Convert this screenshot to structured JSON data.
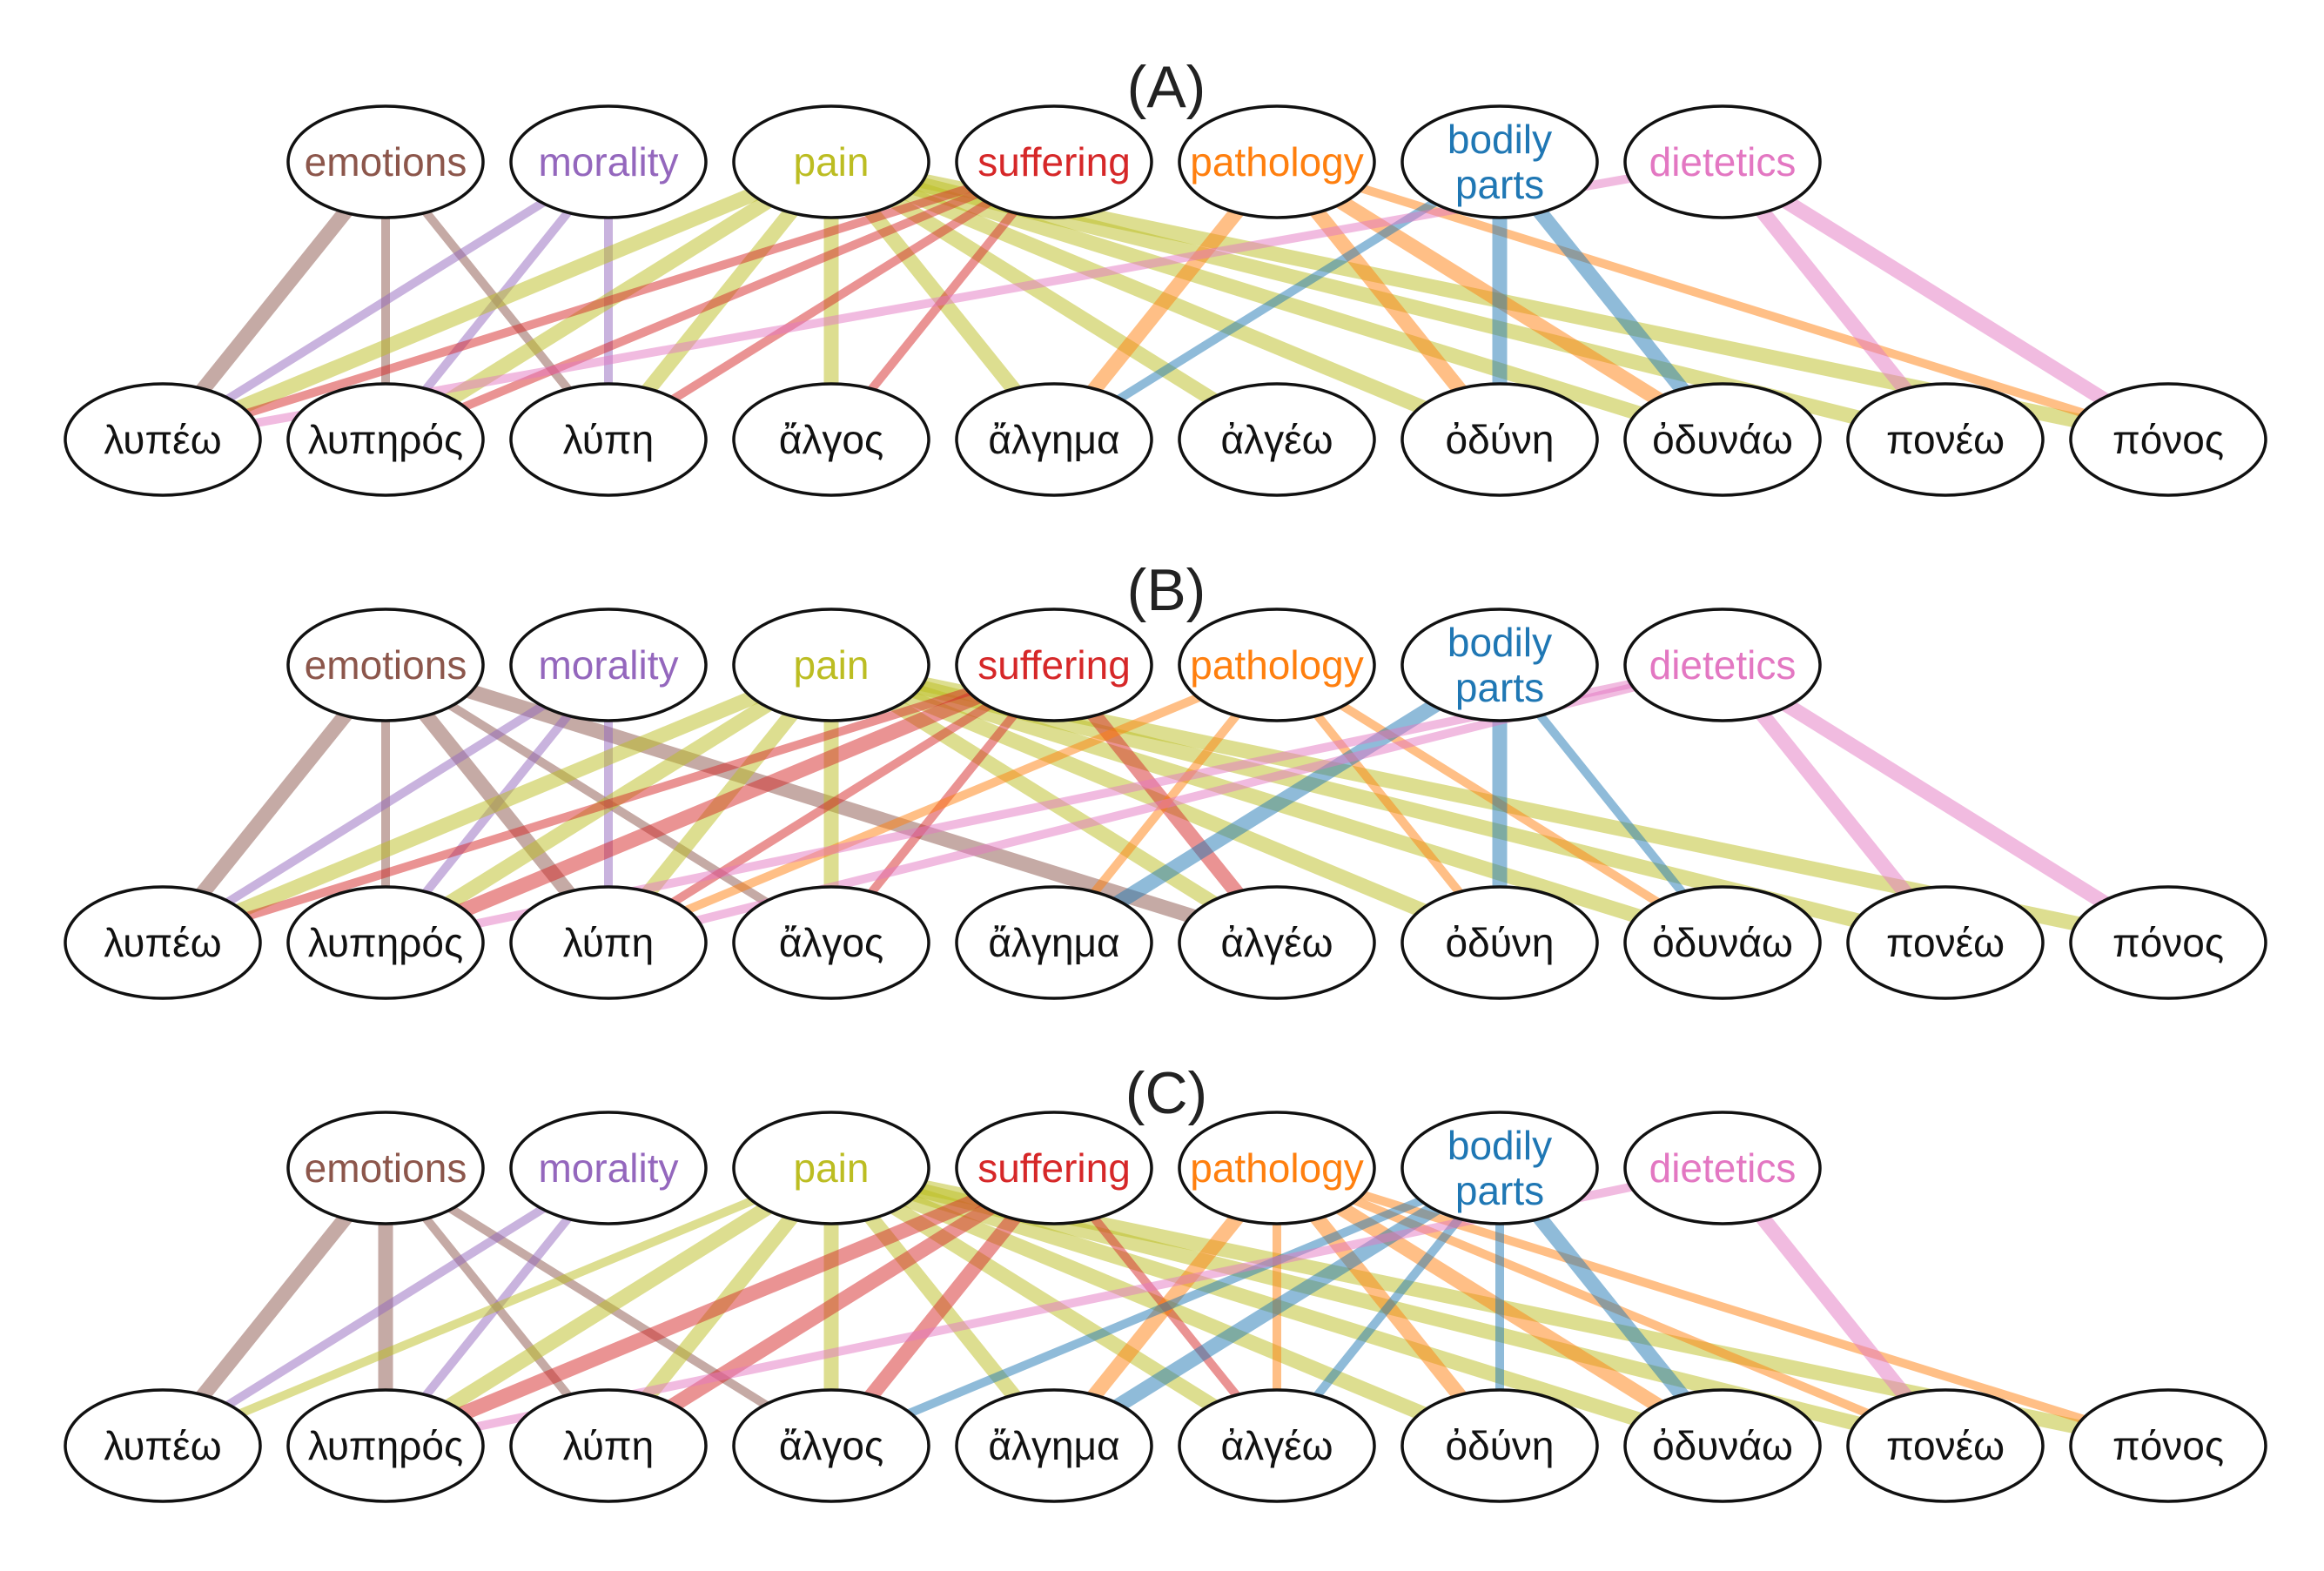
{
  "categories": [
    {
      "id": "emotions",
      "label": [
        "emotions"
      ],
      "color": "#8c564b"
    },
    {
      "id": "morality",
      "label": [
        "morality"
      ],
      "color": "#9467bd"
    },
    {
      "id": "pain",
      "label": [
        "pain"
      ],
      "color": "#bcbd22"
    },
    {
      "id": "suffering",
      "label": [
        "suffering"
      ],
      "color": "#d62728"
    },
    {
      "id": "pathology",
      "label": [
        "pathology"
      ],
      "color": "#ff7f0e"
    },
    {
      "id": "bodily_parts",
      "label": [
        "bodily",
        "parts"
      ],
      "color": "#1f77b4"
    },
    {
      "id": "dietetics",
      "label": [
        "dietetics"
      ],
      "color": "#e377c2"
    }
  ],
  "words": [
    "λυπέω",
    "λυπηρός",
    "λύπη",
    "ἄλγος",
    "ἄλγημα",
    "ἀλγέω",
    "ὀδύνη",
    "ὀδυνάω",
    "πονέω",
    "πόνος"
  ],
  "panels": [
    {
      "label": "(A)",
      "edges": [
        [
          "emotions",
          "λυπέω",
          3
        ],
        [
          "emotions",
          "λυπηρός",
          2
        ],
        [
          "emotions",
          "λύπη",
          2
        ],
        [
          "morality",
          "λυπέω",
          2
        ],
        [
          "morality",
          "λυπηρός",
          2
        ],
        [
          "morality",
          "λύπη",
          2
        ],
        [
          "pain",
          "λυπέω",
          3
        ],
        [
          "pain",
          "λυπηρός",
          3
        ],
        [
          "pain",
          "λύπη",
          3
        ],
        [
          "pain",
          "ἄλγος",
          3
        ],
        [
          "pain",
          "ἄλγημα",
          3
        ],
        [
          "pain",
          "ἀλγέω",
          3
        ],
        [
          "pain",
          "ὀδύνη",
          3
        ],
        [
          "pain",
          "ὀδυνάω",
          3
        ],
        [
          "pain",
          "πονέω",
          3
        ],
        [
          "pain",
          "πόνος",
          3
        ],
        [
          "suffering",
          "λυπέω",
          2
        ],
        [
          "suffering",
          "λυπηρός",
          2
        ],
        [
          "suffering",
          "λύπη",
          2
        ],
        [
          "suffering",
          "ἄλγος",
          2
        ],
        [
          "pathology",
          "ἄλγημα",
          3
        ],
        [
          "pathology",
          "ὀδύνη",
          3
        ],
        [
          "pathology",
          "ὀδυνάω",
          3
        ],
        [
          "pathology",
          "πόνος",
          2
        ],
        [
          "bodily_parts",
          "ἄλγημα",
          2
        ],
        [
          "bodily_parts",
          "ὀδύνη",
          3
        ],
        [
          "bodily_parts",
          "ὀδυνάω",
          3
        ],
        [
          "dietetics",
          "λυπέω",
          2
        ],
        [
          "dietetics",
          "πονέω",
          3
        ],
        [
          "dietetics",
          "πόνος",
          3
        ]
      ]
    },
    {
      "label": "(B)",
      "edges": [
        [
          "emotions",
          "λυπέω",
          3
        ],
        [
          "emotions",
          "λυπηρός",
          2
        ],
        [
          "emotions",
          "λύπη",
          3
        ],
        [
          "emotions",
          "ἄλγος",
          2
        ],
        [
          "emotions",
          "ἀλγέω",
          3
        ],
        [
          "morality",
          "λυπέω",
          2
        ],
        [
          "morality",
          "λυπηρός",
          2
        ],
        [
          "morality",
          "λύπη",
          2
        ],
        [
          "pain",
          "λυπέω",
          3
        ],
        [
          "pain",
          "λυπηρός",
          3
        ],
        [
          "pain",
          "λύπη",
          3
        ],
        [
          "pain",
          "ἄλγος",
          3
        ],
        [
          "pain",
          "ἀλγέω",
          3
        ],
        [
          "pain",
          "ὀδύνη",
          3
        ],
        [
          "pain",
          "ὀδυνάω",
          3
        ],
        [
          "pain",
          "πονέω",
          3
        ],
        [
          "pain",
          "πόνος",
          3
        ],
        [
          "suffering",
          "λυπέω",
          2
        ],
        [
          "suffering",
          "λυπηρός",
          3
        ],
        [
          "suffering",
          "λύπη",
          2
        ],
        [
          "suffering",
          "ἄλγος",
          2
        ],
        [
          "suffering",
          "ἀλγέω",
          3
        ],
        [
          "pathology",
          "λύπη",
          2
        ],
        [
          "pathology",
          "ἄλγημα",
          2
        ],
        [
          "pathology",
          "ὀδύνη",
          2
        ],
        [
          "pathology",
          "ὀδυνάω",
          2
        ],
        [
          "bodily_parts",
          "ἄλγημα",
          3
        ],
        [
          "bodily_parts",
          "ὀδύνη",
          3
        ],
        [
          "bodily_parts",
          "ὀδυνάω",
          2
        ],
        [
          "dietetics",
          "λυπηρός",
          2
        ],
        [
          "dietetics",
          "λύπη",
          2
        ],
        [
          "dietetics",
          "πονέω",
          3
        ],
        [
          "dietetics",
          "πόνος",
          3
        ]
      ]
    },
    {
      "label": "(C)",
      "edges": [
        [
          "emotions",
          "λυπέω",
          3
        ],
        [
          "emotions",
          "λυπηρός",
          3
        ],
        [
          "emotions",
          "λύπη",
          2
        ],
        [
          "emotions",
          "ἄλγος",
          2
        ],
        [
          "morality",
          "λυπέω",
          2
        ],
        [
          "morality",
          "λυπηρός",
          2
        ],
        [
          "pain",
          "λυπέω",
          2
        ],
        [
          "pain",
          "λυπηρός",
          3
        ],
        [
          "pain",
          "λύπη",
          3
        ],
        [
          "pain",
          "ἄλγος",
          3
        ],
        [
          "pain",
          "ἄλγημα",
          3
        ],
        [
          "pain",
          "ἀλγέω",
          3
        ],
        [
          "pain",
          "ὀδύνη",
          3
        ],
        [
          "pain",
          "ὀδυνάω",
          3
        ],
        [
          "pain",
          "πονέω",
          3
        ],
        [
          "pain",
          "πόνος",
          3
        ],
        [
          "suffering",
          "λυπηρός",
          3
        ],
        [
          "suffering",
          "λύπη",
          3
        ],
        [
          "suffering",
          "ἄλγος",
          3
        ],
        [
          "suffering",
          "ἀλγέω",
          2
        ],
        [
          "pathology",
          "ἄλγημα",
          3
        ],
        [
          "pathology",
          "ἀλγέω",
          2
        ],
        [
          "pathology",
          "ὀδύνη",
          3
        ],
        [
          "pathology",
          "ὀδυνάω",
          3
        ],
        [
          "pathology",
          "πονέω",
          2
        ],
        [
          "pathology",
          "πόνος",
          2
        ],
        [
          "bodily_parts",
          "ἄλγος",
          2
        ],
        [
          "bodily_parts",
          "ἄλγημα",
          3
        ],
        [
          "bodily_parts",
          "ἀλγέω",
          2
        ],
        [
          "bodily_parts",
          "ὀδύνη",
          2
        ],
        [
          "bodily_parts",
          "ὀδυνάω",
          3
        ],
        [
          "dietetics",
          "λυπηρός",
          2
        ],
        [
          "dietetics",
          "πονέω",
          3
        ]
      ]
    }
  ]
}
